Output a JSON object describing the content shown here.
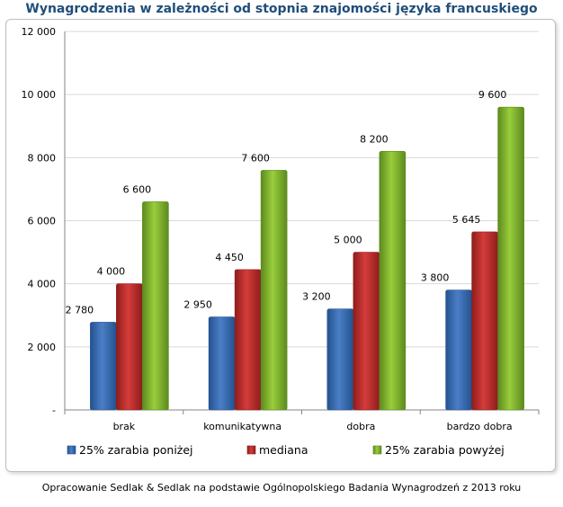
{
  "title": "Wynagrodzenia w zależności od stopnia znajomości języka francuskiego",
  "caption": "Opracowanie Sedlak & Sedlak na podstawie Ogólnopolskiego Badania Wynagrodzeń z 2013 roku",
  "chart_data": {
    "type": "bar",
    "title": "Wynagrodzenia w zależności od stopnia znajomości języka francuskiego",
    "xlabel": "",
    "ylabel": "",
    "ylim": [
      0,
      12000
    ],
    "yticks": [
      0,
      2000,
      4000,
      6000,
      8000,
      10000,
      12000
    ],
    "ytick_labels": [
      "-",
      "2 000",
      "4 000",
      "6 000",
      "8 000",
      "10 000",
      "12 000"
    ],
    "grid": true,
    "legend_position": "bottom",
    "categories": [
      "brak",
      "komunikatywna",
      "dobra",
      "bardzo dobra"
    ],
    "series": [
      {
        "name": "25% zarabia poniżej",
        "values": [
          2780,
          2950,
          3200,
          3800
        ],
        "labels": [
          "2 780",
          "2 950",
          "3 200",
          "3 800"
        ],
        "color": "#4A7EC6",
        "dark": "#24528F"
      },
      {
        "name": "mediana",
        "values": [
          4000,
          4450,
          5000,
          5645
        ],
        "labels": [
          "4 000",
          "4 450",
          "5 000",
          "5 645"
        ],
        "color": "#D43C3A",
        "dark": "#8E1D1B"
      },
      {
        "name": "25% zarabia powyżej",
        "values": [
          6600,
          7600,
          8200,
          9600
        ],
        "labels": [
          "6 600",
          "7 600",
          "8 200",
          "9 600"
        ],
        "color": "#9ACD3C",
        "dark": "#5C8A1D"
      }
    ]
  }
}
